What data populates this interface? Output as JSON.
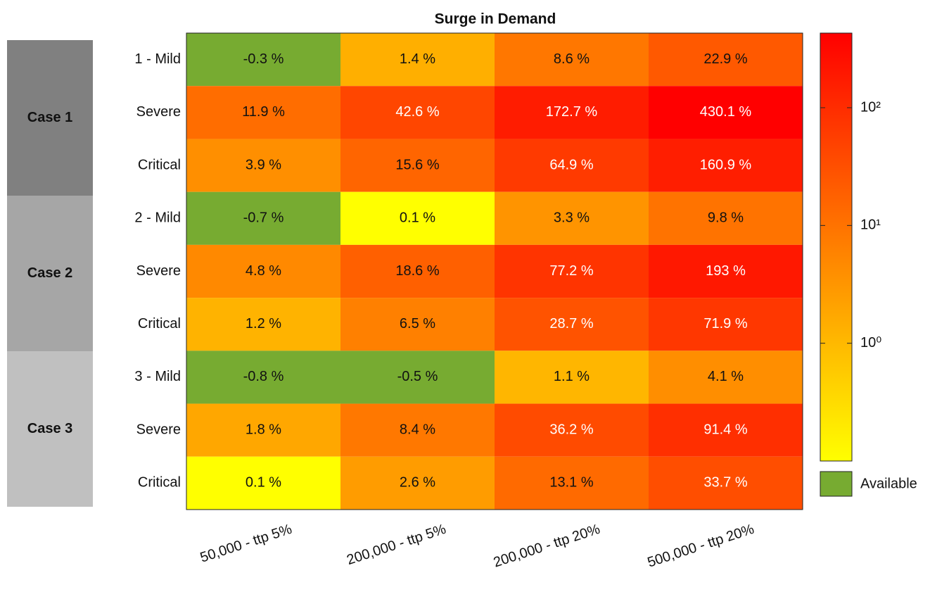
{
  "chart_data": {
    "type": "heatmap",
    "title": "Surge in Demand",
    "row_groups": [
      "Case 1",
      "Case 2",
      "Case 3"
    ],
    "rows": [
      "1 - Mild",
      "Severe",
      "Critical",
      "2 - Mild",
      "Severe",
      "Critical",
      "3 - Mild",
      "Severe",
      "Critical"
    ],
    "columns": [
      "50,000 - ttp 5%",
      "200,000 - ttp 5%",
      "200,000 - ttp 20%",
      "500,000 - ttp 20%"
    ],
    "values": [
      [
        -0.3,
        1.4,
        8.6,
        22.9
      ],
      [
        11.9,
        42.6,
        172.7,
        430.1
      ],
      [
        3.9,
        15.6,
        64.9,
        160.9
      ],
      [
        -0.7,
        0.1,
        3.3,
        9.8
      ],
      [
        4.8,
        18.6,
        77.2,
        193
      ],
      [
        1.2,
        6.5,
        28.7,
        71.9
      ],
      [
        -0.8,
        -0.5,
        1.1,
        4.1
      ],
      [
        1.8,
        8.4,
        36.2,
        91.4
      ],
      [
        0.1,
        2.6,
        13.1,
        33.7
      ]
    ],
    "value_labels": [
      [
        "-0.3 %",
        "1.4 %",
        "8.6 %",
        "22.9 %"
      ],
      [
        "11.9 %",
        "42.6 %",
        "172.7 %",
        "430.1 %"
      ],
      [
        "3.9 %",
        "15.6 %",
        "64.9 %",
        "160.9 %"
      ],
      [
        "-0.7 %",
        "0.1 %",
        "3.3 %",
        "9.8 %"
      ],
      [
        "4.8 %",
        "18.6 %",
        "77.2 %",
        "193 %"
      ],
      [
        "1.2 %",
        "6.5 %",
        "28.7 %",
        "71.9 %"
      ],
      [
        "-0.8 %",
        "-0.5 %",
        "1.1 %",
        "4.1 %"
      ],
      [
        "1.8 %",
        "8.4 %",
        "36.2 %",
        "91.4 %"
      ],
      [
        "0.1 %",
        "2.6 %",
        "13.1 %",
        "33.7 %"
      ]
    ],
    "color_scale": "log",
    "colormap": [
      "#ffff00",
      "#ff0000"
    ],
    "clim": [
      0.1,
      430.1
    ],
    "cticks": [
      {
        "value": 1,
        "label": "10⁰"
      },
      {
        "value": 10,
        "label": "10¹"
      },
      {
        "value": 100,
        "label": "10²"
      }
    ],
    "legend": {
      "label": "Available",
      "color": "#77ab31"
    },
    "group_colors": [
      "#808080",
      "#a6a6a6",
      "#c0c0c0"
    ]
  }
}
